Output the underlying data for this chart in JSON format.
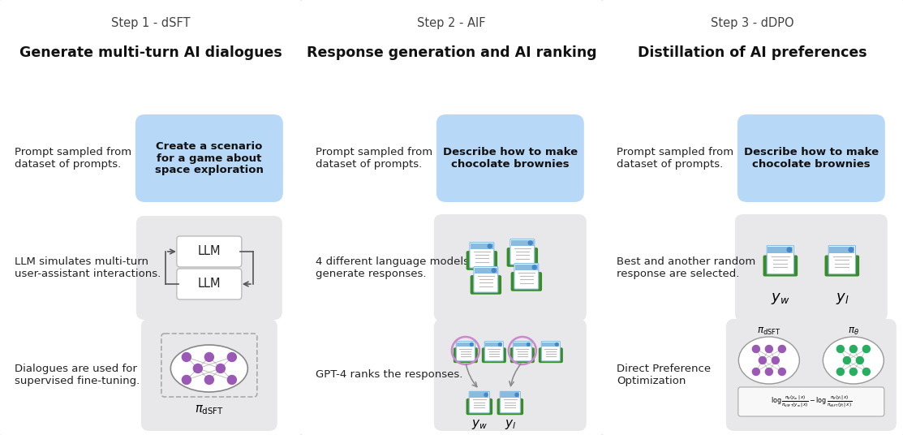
{
  "bg_color": "#f0f0f2",
  "col_bg": "#ffffff",
  "blue_box_bg": "#b8d8f8",
  "step_labels": [
    "Step 1 - dSFT",
    "Step 2 - AIF",
    "Step 3 - dDPO"
  ],
  "col_titles": [
    "Generate multi-turn AI dialogues",
    "Response generation and AI ranking",
    "Distillation of AI preferences"
  ],
  "row1_left": [
    "Prompt sampled from\ndataset of prompts.",
    "Prompt sampled from\ndataset of prompts.",
    "Prompt sampled from\ndataset of prompts."
  ],
  "row1_blue": [
    "Create a scenario\nfor a game about\nspace exploration",
    "Describe how to make\nchocolate brownies",
    "Describe how to make\nchocolate brownies"
  ],
  "row2_left": [
    "LLM simulates multi-turn\nuser-assistant interactions.",
    "4 different language models\ngenerate responses.",
    "Best and another random\nresponse are selected."
  ],
  "row3_left": [
    "Dialogues are used for\nsupervised fine-tuning.",
    "GPT-4 ranks the responses.",
    "Direct Preference\nOptimization"
  ],
  "panel_color": "#e8e8ea",
  "col_divider": "#d0d0d4",
  "figw": 11.13,
  "figh": 5.36
}
